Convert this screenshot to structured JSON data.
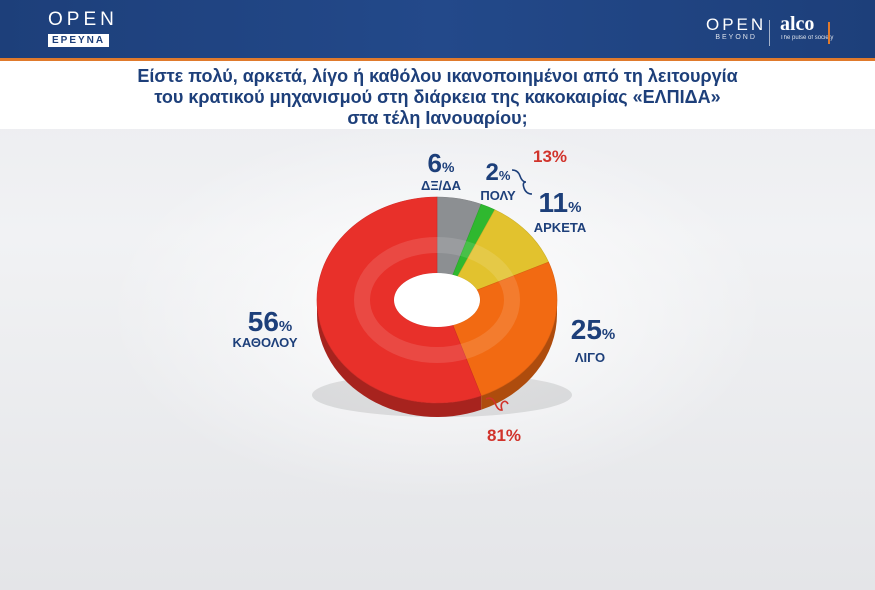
{
  "header": {
    "logo_left_main": "OPEN",
    "logo_left_sub": "ΕΡΕΥΝΑ",
    "logo_right_main": "OPEN",
    "logo_right_sub": "BEYOND",
    "partner_logo": "alco",
    "partner_tagline": "The pulse of society"
  },
  "title_lines": [
    "Είστε πολύ, αρκετά, λίγο ή καθόλου ικανοποιημένοι από τη λειτουργία",
    "του κρατικού μηχανισμού στη διάρκεια της κακοκαιρίας «ΕΛΠΙΔΑ»",
    "στα τέλη Ιανουαρίου;"
  ],
  "chart_data": {
    "type": "pie",
    "style": "donut-3d",
    "title": "Είστε πολύ, αρκετά, λίγο ή καθόλου ικανοποιημένοι από τη λειτουργία του κρατικού μηχανισμού στη διάρκεια της κακοκαιρίας «ΕΛΠΙΔΑ» στα τέλη Ιανουαρίου;",
    "categories": [
      "ΔΞ/ΔΑ",
      "ΠΟΛΥ",
      "ΑΡΚΕΤΑ",
      "ΛΙΓΟ",
      "ΚΑΘΟΛΟΥ"
    ],
    "values": [
      6,
      2,
      11,
      25,
      56
    ],
    "colors": [
      "#8c8f92",
      "#2fb82f",
      "#e2c22e",
      "#f26a12",
      "#e8302a"
    ],
    "unit": "%",
    "group_labels": [
      {
        "label": "13%",
        "members": [
          "ΠΟΛΥ",
          "ΑΡΚΕΤΑ"
        ],
        "value": 13
      },
      {
        "label": "81%",
        "members": [
          "ΛΙΓΟ",
          "ΚΑΘΟΛΟΥ"
        ],
        "value": 81
      }
    ]
  }
}
